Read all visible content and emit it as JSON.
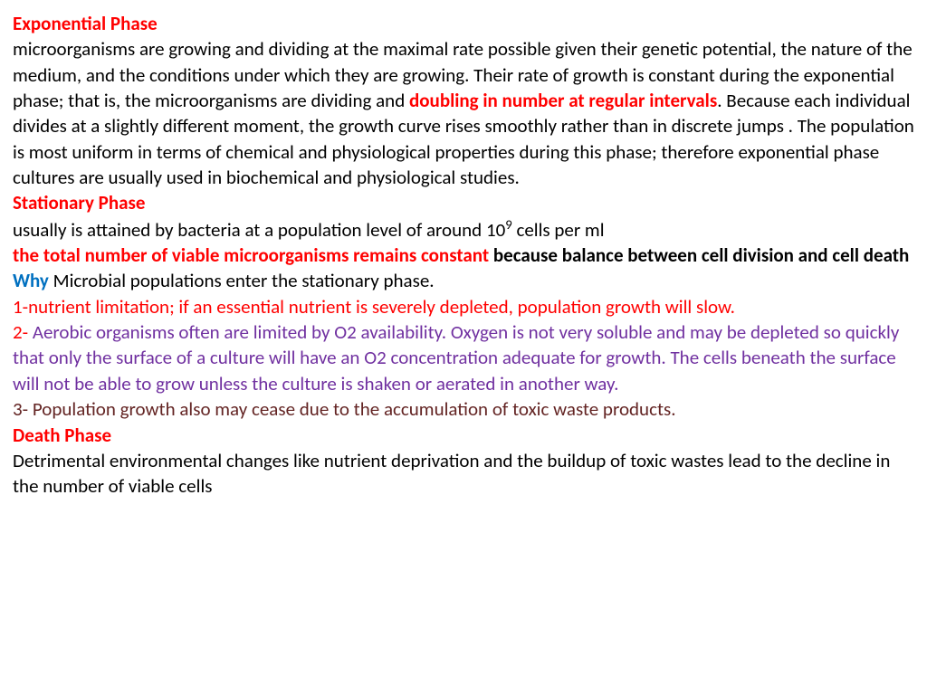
{
  "colors": {
    "red": "#ff0000",
    "black": "#000000",
    "blue": "#0070c0",
    "purple": "#7030a0",
    "maroon": "#632423",
    "background": "#ffffff"
  },
  "typography": {
    "font_family": "Calibri",
    "font_size_pt": 16,
    "line_height": 1.35
  },
  "sections": {
    "exp_heading": "Exponential Phase",
    "exp_body_1": "microorganisms are growing and dividing at the maximal rate possible given their genetic potential, the nature of the medium, and the conditions under which they are growing. Their rate of growth is constant during the exponential phase; that is, the microorganisms  are dividing and ",
    "exp_highlight": "doubling in number at regular intervals",
    "exp_body_2": ". Because each  individual  divides  at  a  slightly  different  moment,  the growth curve rises smoothly rather than in discrete jumps . The population is most uniform in terms of chemical and physiological properties during this phase; therefore exponential phase cultures are usually used in biochemical and physiological studies.",
    "stat_heading": "Stationary Phase",
    "stat_line1_pre": "usually is attained by bacteria at a population level of around 10",
    "stat_line1_sup": "9",
    "stat_line1_post": "  cells per ml",
    "stat_red_bold": "the total number of viable microorganisms remains constant",
    "stat_black_tail": " because balance between cell division and cell death",
    "why_label": "Why",
    "why_rest": " Microbial populations enter the stationary phase.",
    "reason1": "1-nutrient limitation; if an essential nutrient is severely depleted, population growth will slow.",
    "reason2_num": "2-",
    "reason2_body": " Aerobic organisms often are limited by O2 availability. Oxygen is not very soluble and may be depleted so quickly that only the surface of a culture will have an O2  concentration adequate for growth. The cells beneath the surface will not be able to grow unless the culture is shaken or aerated in another way.",
    "reason3": "3- Population growth also may cease due to the accumulation of toxic waste products.",
    "death_heading": "Death Phase",
    "death_body": "Detrimental environmental changes like nutrient deprivation and the buildup of toxic wastes lead to the decline in the number of viable cells"
  }
}
